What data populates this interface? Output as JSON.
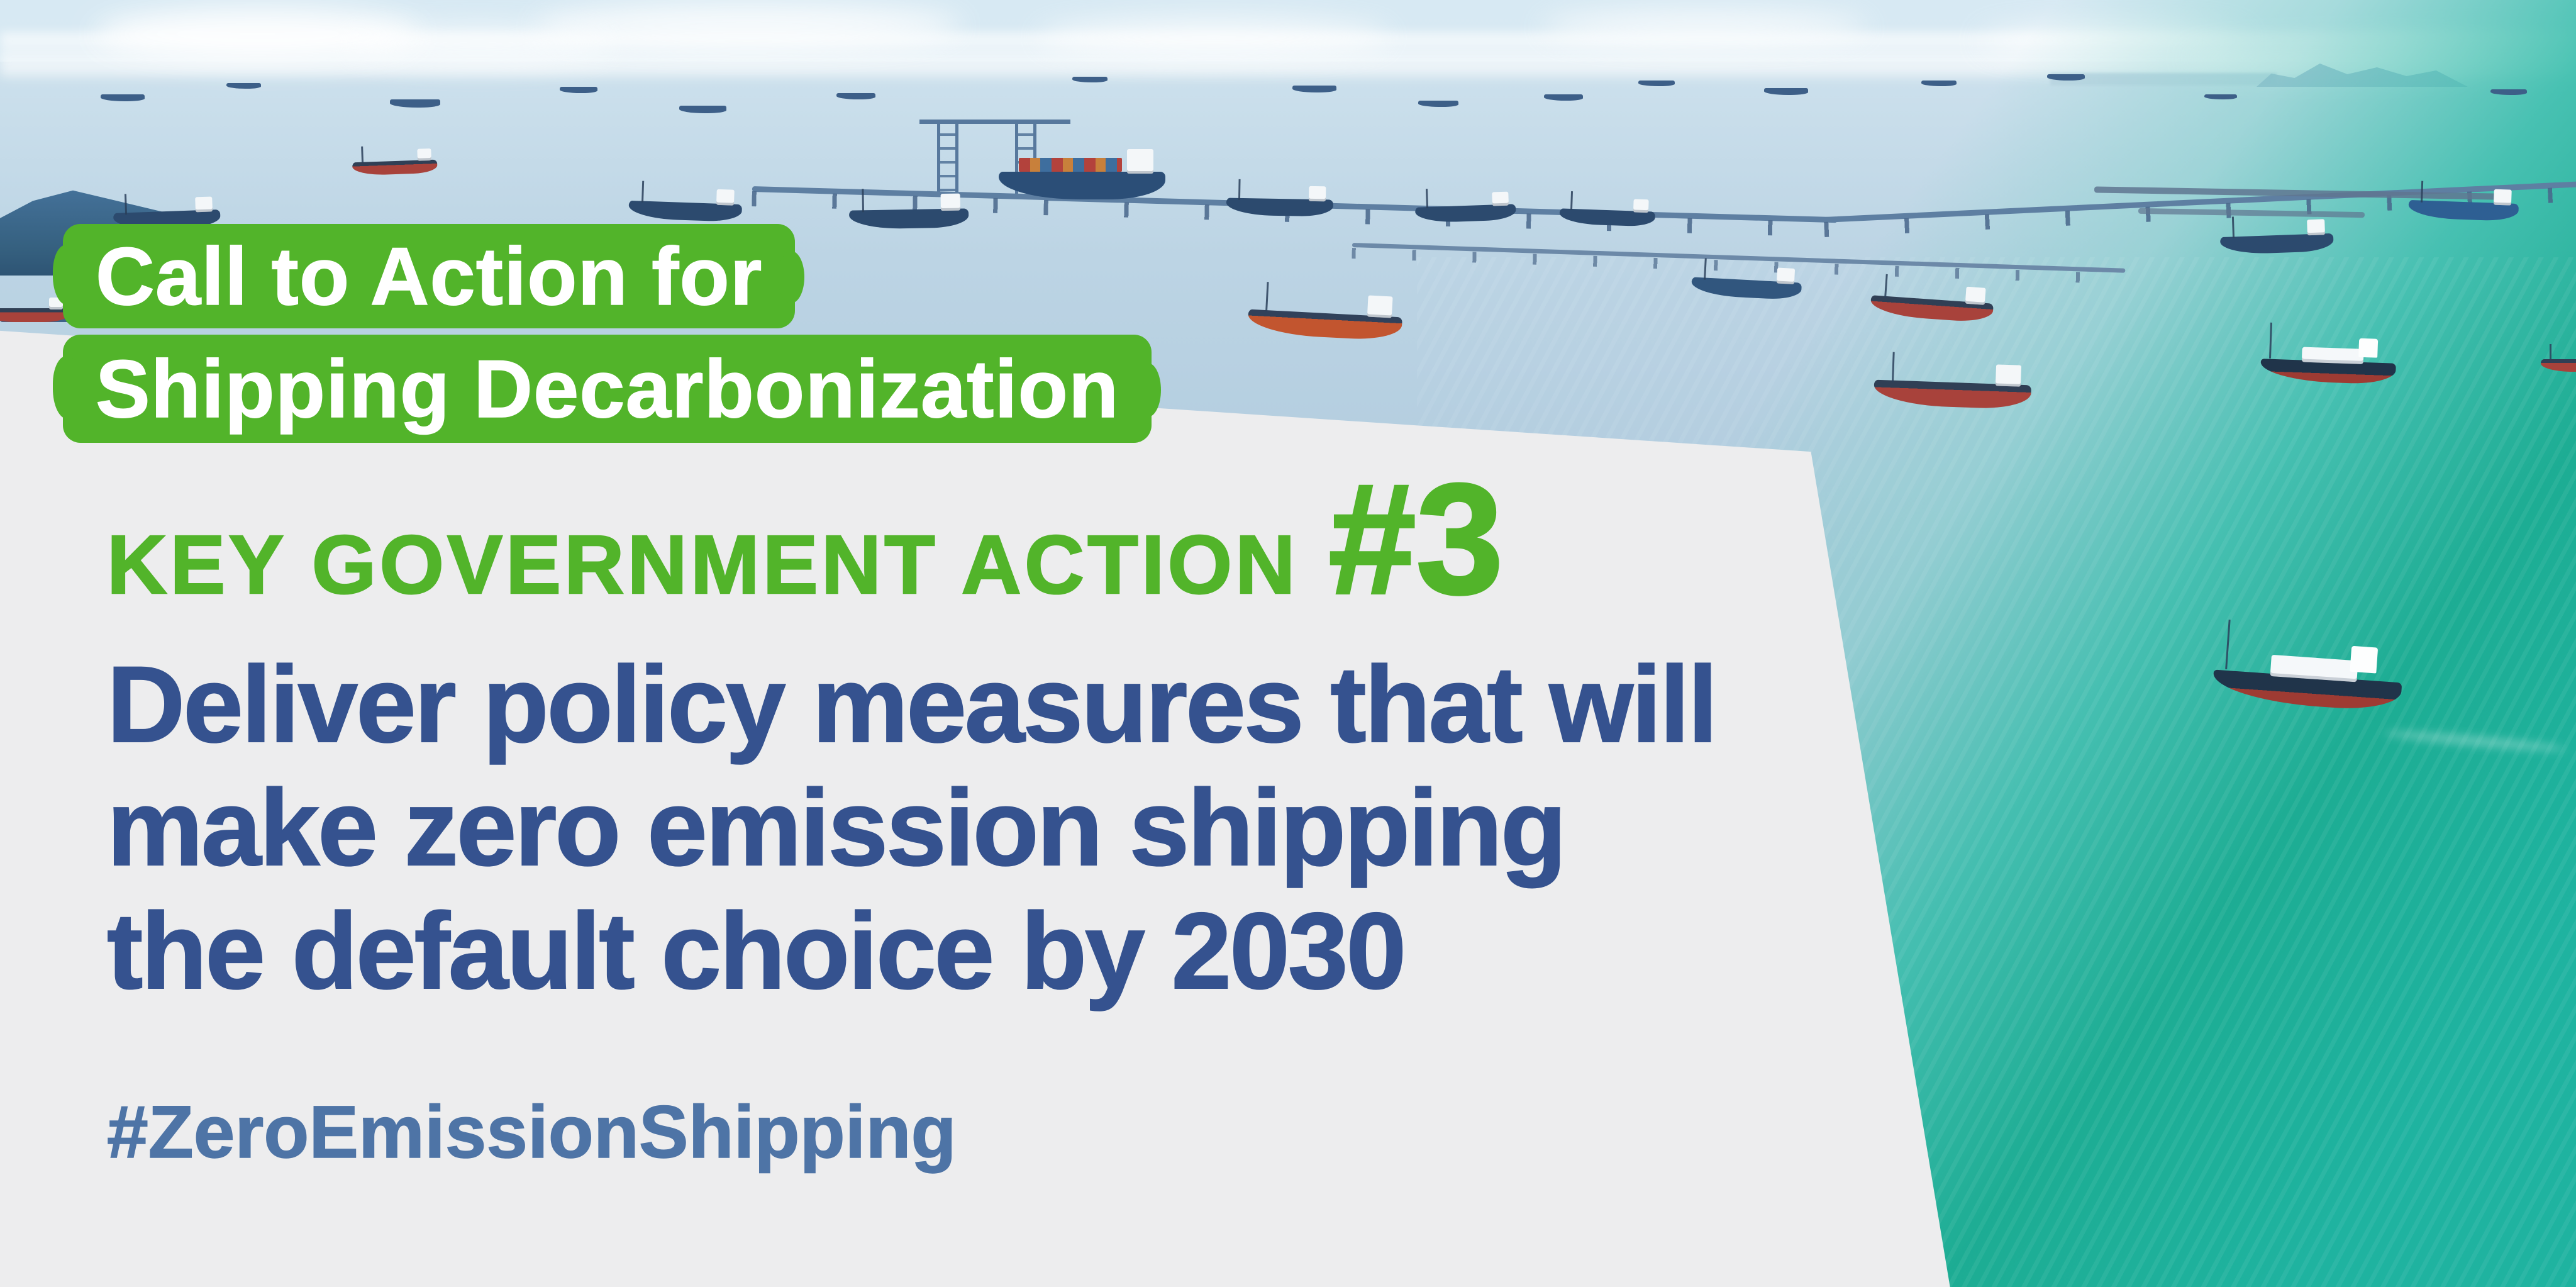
{
  "poster": {
    "badge_line1": "Call to Action for",
    "badge_line2": "Shipping Decarbonization",
    "kicker_label": "KEY GOVERNMENT ACTION",
    "kicker_number": "#3",
    "headline_line1": "Deliver policy measures that will",
    "headline_line2": "make zero emission shipping",
    "headline_line3": "the default choice by 2030",
    "hashtag": "#ZeroEmissionShipping"
  },
  "colors": {
    "accent_green": "#52B42A",
    "headline_navy": "#35528F",
    "hashtag_blue": "#4E74A6",
    "panel_gray": "#EDEDEE",
    "badge_text_white": "#FFFFFF",
    "sea_teal": "#1FB3A0",
    "sea_blue": "#A9C4DA",
    "sky_blue": "#DCEBF4"
  }
}
